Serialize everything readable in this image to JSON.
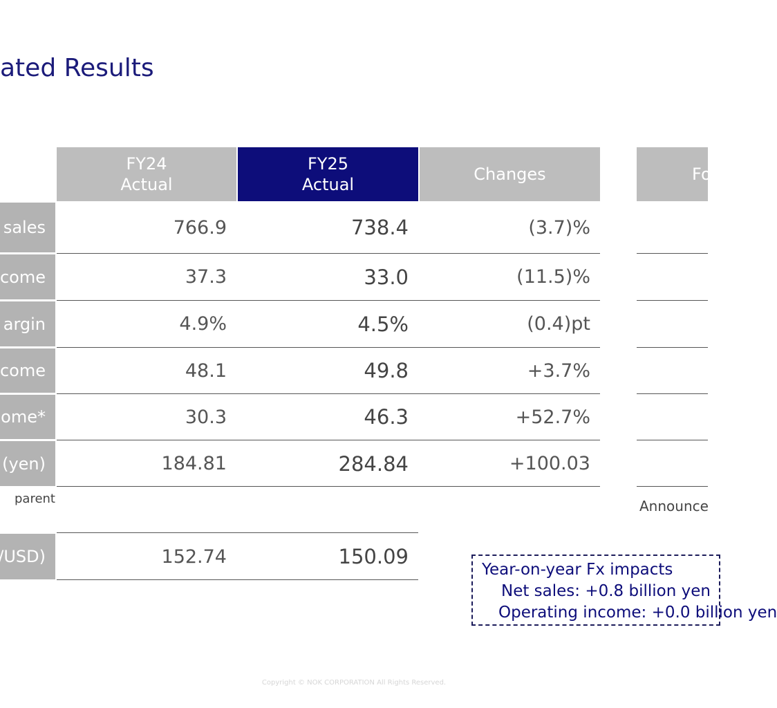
{
  "title": "ated Results",
  "headers": {
    "fy24": {
      "line1": "FY24",
      "line2": "Actual"
    },
    "fy25": {
      "line1": "FY25",
      "line2": "Actual"
    },
    "changes": "Changes",
    "right": "Fo"
  },
  "rows": [
    {
      "label": "sales",
      "fy24": "766.9",
      "fy25": "738.4",
      "change": "(3.7)%"
    },
    {
      "label": "come",
      "fy24": "37.3",
      "fy25": "33.0",
      "change": "(11.5)%"
    },
    {
      "label": "argin",
      "fy24": "4.9%",
      "fy25": "4.5%",
      "change": "(0.4)pt"
    },
    {
      "label": "come",
      "fy24": "48.1",
      "fy25": "49.8",
      "change": "+3.7%"
    },
    {
      "label": "ome*",
      "fy24": "30.3",
      "fy25": "46.3",
      "change": "+52.7%"
    },
    {
      "label": "(yen)",
      "fy24": "184.81",
      "fy25": "284.84",
      "change": "+100.03"
    }
  ],
  "note": "parent",
  "fx_row": {
    "label": "/USD)",
    "fy24": "152.74",
    "fy25": "150.09"
  },
  "announce": "Announce",
  "fx_box": {
    "title": "Year-on-year Fx impacts",
    "line1": "Net sales: +0.8 billion yen",
    "line2": "Operating income: +0.0 billion yen"
  },
  "copyright": "Copyright © NOK CORPORATION All Rights Reserved."
}
